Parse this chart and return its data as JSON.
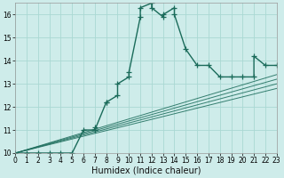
{
  "xlabel": "Humidex (Indice chaleur)",
  "bg_color": "#ceecea",
  "line_color": "#1a6b5a",
  "grid_color": "#aad8d3",
  "xlim": [
    0,
    23
  ],
  "ylim": [
    10,
    16.5
  ],
  "yticks": [
    10,
    11,
    12,
    13,
    14,
    15,
    16
  ],
  "xticks": [
    0,
    1,
    2,
    3,
    4,
    5,
    6,
    7,
    8,
    9,
    10,
    11,
    12,
    13,
    14,
    15,
    16,
    17,
    18,
    19,
    20,
    21,
    22,
    23
  ],
  "main_x": [
    0,
    1,
    2,
    3,
    4,
    5,
    6,
    7,
    7,
    7,
    8,
    8,
    9,
    9,
    10,
    10,
    11,
    11,
    12,
    12,
    13,
    13,
    14,
    14,
    15,
    16,
    17,
    18,
    19,
    20,
    21,
    21,
    22,
    23
  ],
  "main_y": [
    10,
    10,
    10,
    10,
    10,
    10,
    11,
    11,
    11.1,
    11,
    12.2,
    12.2,
    12.5,
    13,
    13.3,
    13.5,
    15.9,
    16.3,
    16.5,
    16.3,
    15.9,
    16,
    16.3,
    16,
    14.5,
    13.8,
    13.8,
    13.3,
    13.3,
    13.3,
    13.3,
    14.2,
    13.8,
    13.8
  ],
  "diag_lines": [
    {
      "x": [
        0,
        23
      ],
      "y": [
        10,
        12.8
      ]
    },
    {
      "x": [
        0,
        23
      ],
      "y": [
        10,
        13.0
      ]
    },
    {
      "x": [
        0,
        23
      ],
      "y": [
        10,
        13.2
      ]
    },
    {
      "x": [
        0,
        23
      ],
      "y": [
        10,
        13.4
      ]
    }
  ],
  "marker_size": 4,
  "line_width": 1.0,
  "tick_fontsize": 5.5,
  "xlabel_fontsize": 7
}
